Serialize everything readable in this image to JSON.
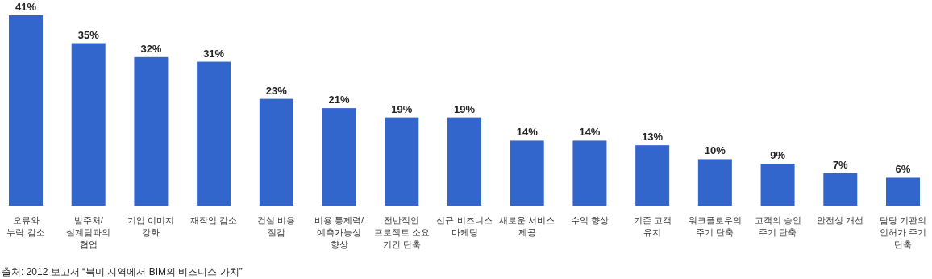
{
  "chart_data": {
    "type": "bar",
    "categories": [
      "오류와\n누락 감소",
      "발주처/\n설계팀과의\n협업",
      "기업 이미지\n강화",
      "재작업 감소",
      "건설 비용\n절감",
      "비용 통제력/\n예측가능성\n향상",
      "전반적인\n프로젝트 소요\n기간 단축",
      "신규 비즈니스\n마케팅",
      "새로운 서비스\n제공",
      "수익 향상",
      "기존 고객\n유지",
      "워크플로우의\n주기 단축",
      "고객의 승인\n주기 단축",
      "안전성 개선",
      "담당 기관의\n인허가 주기\n단축"
    ],
    "values": [
      41,
      35,
      32,
      31,
      23,
      21,
      19,
      19,
      14,
      14,
      13,
      10,
      9,
      7,
      6
    ],
    "value_labels": [
      "41%",
      "35%",
      "32%",
      "31%",
      "23%",
      "21%",
      "19%",
      "19%",
      "14%",
      "14%",
      "13%",
      "10%",
      "9%",
      "7%",
      "6%"
    ],
    "color": "#3366cc",
    "annotations": [
      "출처: 2012 보고서 “북미 지역에서 BIM의 비즈니스 가치”"
    ]
  }
}
